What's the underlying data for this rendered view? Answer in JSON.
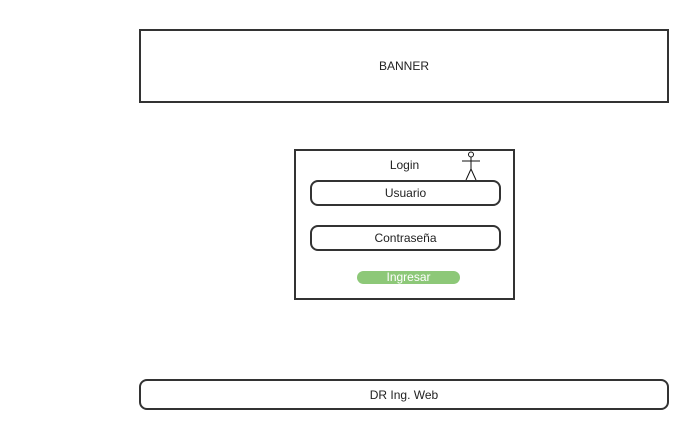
{
  "banner": {
    "label": "BANNER"
  },
  "login": {
    "title": "Login",
    "user_field": "Usuario",
    "password_field": "Contraseña",
    "submit_label": "Ingresar",
    "user_icon": "stick-figure-user-icon"
  },
  "footer": {
    "label": "DR Ing. Web"
  },
  "colors": {
    "border": "#333333",
    "submit_button": "#8dc878",
    "background": "#ffffff"
  }
}
